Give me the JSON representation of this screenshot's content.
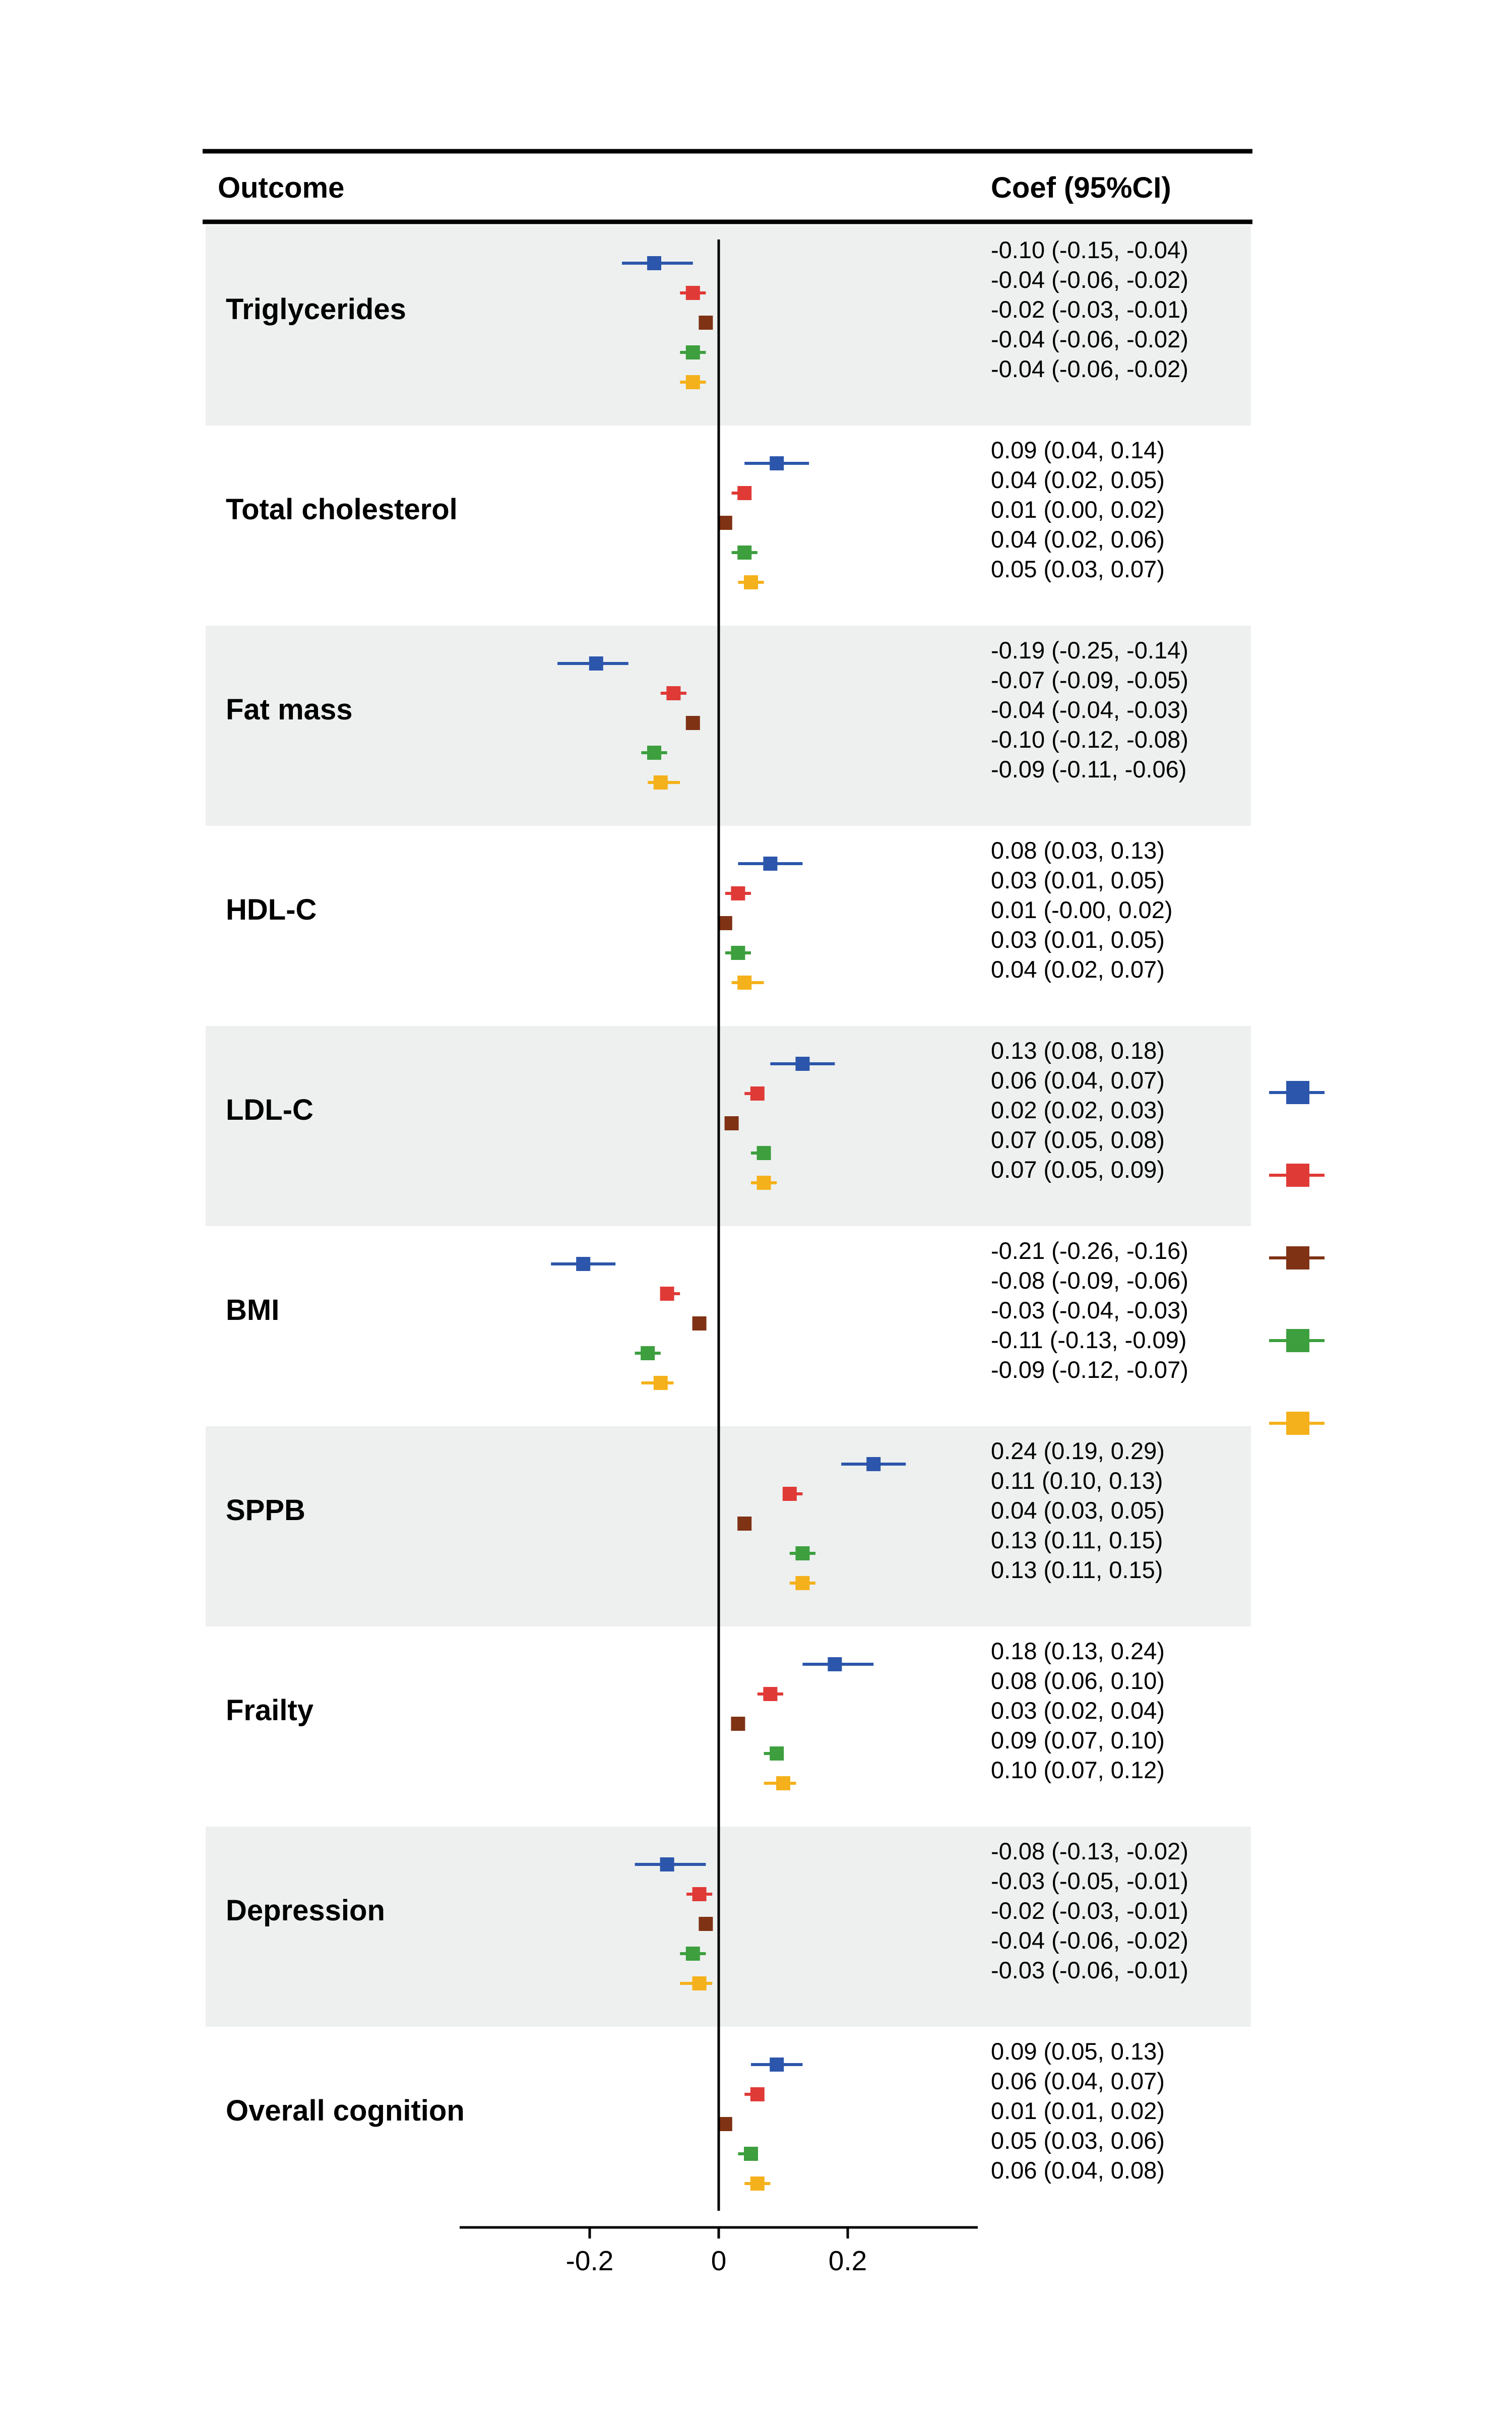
{
  "header": {
    "outcome": "Outcome",
    "coef": "Coef (95%CI)"
  },
  "colors": {
    "band": "#edf0ef",
    "series": [
      "#2c56ab",
      "#e03a37",
      "#7f3214",
      "#3d9f3e",
      "#f5b11b"
    ]
  },
  "chart_data": {
    "type": "forest",
    "x_ticks": [
      -0.2,
      0,
      0.2
    ],
    "x_tick_labels": [
      "-0.2",
      "0",
      "0.2"
    ],
    "xlim": [
      -0.4,
      0.4
    ],
    "reference_line": 0,
    "legend_placement": "right",
    "series_count": 5,
    "groups": [
      {
        "outcome": "Triglycerides",
        "shaded": true,
        "estimates": [
          {
            "est": -0.1,
            "lo": -0.15,
            "hi": -0.04,
            "label": "-0.10 (-0.15, -0.04)"
          },
          {
            "est": -0.04,
            "lo": -0.06,
            "hi": -0.02,
            "label": "-0.04 (-0.06, -0.02)"
          },
          {
            "est": -0.02,
            "lo": -0.03,
            "hi": -0.01,
            "label": "-0.02 (-0.03, -0.01)"
          },
          {
            "est": -0.04,
            "lo": -0.06,
            "hi": -0.02,
            "label": "-0.04 (-0.06, -0.02)"
          },
          {
            "est": -0.04,
            "lo": -0.06,
            "hi": -0.02,
            "label": "-0.04 (-0.06, -0.02)"
          }
        ]
      },
      {
        "outcome": "Total cholesterol",
        "shaded": false,
        "estimates": [
          {
            "est": 0.09,
            "lo": 0.04,
            "hi": 0.14,
            "label": "0.09 (0.04, 0.14)"
          },
          {
            "est": 0.04,
            "lo": 0.02,
            "hi": 0.05,
            "label": "0.04 (0.02, 0.05)"
          },
          {
            "est": 0.01,
            "lo": 0.0,
            "hi": 0.02,
            "label": "0.01 (0.00, 0.02)"
          },
          {
            "est": 0.04,
            "lo": 0.02,
            "hi": 0.06,
            "label": "0.04 (0.02, 0.06)"
          },
          {
            "est": 0.05,
            "lo": 0.03,
            "hi": 0.07,
            "label": "0.05 (0.03, 0.07)"
          }
        ]
      },
      {
        "outcome": "Fat mass",
        "shaded": true,
        "estimates": [
          {
            "est": -0.19,
            "lo": -0.25,
            "hi": -0.14,
            "label": "-0.19 (-0.25, -0.14)"
          },
          {
            "est": -0.07,
            "lo": -0.09,
            "hi": -0.05,
            "label": "-0.07 (-0.09, -0.05)"
          },
          {
            "est": -0.04,
            "lo": -0.04,
            "hi": -0.03,
            "label": "-0.04 (-0.04, -0.03)"
          },
          {
            "est": -0.1,
            "lo": -0.12,
            "hi": -0.08,
            "label": "-0.10 (-0.12, -0.08)"
          },
          {
            "est": -0.09,
            "lo": -0.11,
            "hi": -0.06,
            "label": "-0.09 (-0.11, -0.06)"
          }
        ]
      },
      {
        "outcome": "HDL-C",
        "shaded": false,
        "estimates": [
          {
            "est": 0.08,
            "lo": 0.03,
            "hi": 0.13,
            "label": "0.08 (0.03, 0.13)"
          },
          {
            "est": 0.03,
            "lo": 0.01,
            "hi": 0.05,
            "label": "0.03 (0.01, 0.05)"
          },
          {
            "est": 0.01,
            "lo": -0.0,
            "hi": 0.02,
            "label": "0.01 (-0.00, 0.02)"
          },
          {
            "est": 0.03,
            "lo": 0.01,
            "hi": 0.05,
            "label": "0.03 (0.01, 0.05)"
          },
          {
            "est": 0.04,
            "lo": 0.02,
            "hi": 0.07,
            "label": "0.04 (0.02, 0.07)"
          }
        ]
      },
      {
        "outcome": "LDL-C",
        "shaded": true,
        "estimates": [
          {
            "est": 0.13,
            "lo": 0.08,
            "hi": 0.18,
            "label": "0.13 (0.08, 0.18)"
          },
          {
            "est": 0.06,
            "lo": 0.04,
            "hi": 0.07,
            "label": "0.06 (0.04, 0.07)"
          },
          {
            "est": 0.02,
            "lo": 0.02,
            "hi": 0.03,
            "label": "0.02 (0.02, 0.03)"
          },
          {
            "est": 0.07,
            "lo": 0.05,
            "hi": 0.08,
            "label": "0.07 (0.05, 0.08)"
          },
          {
            "est": 0.07,
            "lo": 0.05,
            "hi": 0.09,
            "label": "0.07 (0.05, 0.09)"
          }
        ]
      },
      {
        "outcome": "BMI",
        "shaded": false,
        "estimates": [
          {
            "est": -0.21,
            "lo": -0.26,
            "hi": -0.16,
            "label": "-0.21 (-0.26, -0.16)"
          },
          {
            "est": -0.08,
            "lo": -0.09,
            "hi": -0.06,
            "label": "-0.08 (-0.09, -0.06)"
          },
          {
            "est": -0.03,
            "lo": -0.04,
            "hi": -0.03,
            "label": "-0.03 (-0.04, -0.03)"
          },
          {
            "est": -0.11,
            "lo": -0.13,
            "hi": -0.09,
            "label": "-0.11 (-0.13, -0.09)"
          },
          {
            "est": -0.09,
            "lo": -0.12,
            "hi": -0.07,
            "label": "-0.09 (-0.12, -0.07)"
          }
        ]
      },
      {
        "outcome": "SPPB",
        "shaded": true,
        "estimates": [
          {
            "est": 0.24,
            "lo": 0.19,
            "hi": 0.29,
            "label": "0.24 (0.19, 0.29)"
          },
          {
            "est": 0.11,
            "lo": 0.1,
            "hi": 0.13,
            "label": "0.11 (0.10, 0.13)"
          },
          {
            "est": 0.04,
            "lo": 0.03,
            "hi": 0.05,
            "label": "0.04 (0.03, 0.05)"
          },
          {
            "est": 0.13,
            "lo": 0.11,
            "hi": 0.15,
            "label": "0.13 (0.11, 0.15)"
          },
          {
            "est": 0.13,
            "lo": 0.11,
            "hi": 0.15,
            "label": "0.13 (0.11, 0.15)"
          }
        ]
      },
      {
        "outcome": "Frailty",
        "shaded": false,
        "estimates": [
          {
            "est": 0.18,
            "lo": 0.13,
            "hi": 0.24,
            "label": "0.18 (0.13, 0.24)"
          },
          {
            "est": 0.08,
            "lo": 0.06,
            "hi": 0.1,
            "label": "0.08 (0.06, 0.10)"
          },
          {
            "est": 0.03,
            "lo": 0.02,
            "hi": 0.04,
            "label": "0.03 (0.02, 0.04)"
          },
          {
            "est": 0.09,
            "lo": 0.07,
            "hi": 0.1,
            "label": "0.09 (0.07, 0.10)"
          },
          {
            "est": 0.1,
            "lo": 0.07,
            "hi": 0.12,
            "label": "0.10 (0.07, 0.12)"
          }
        ]
      },
      {
        "outcome": "Depression",
        "shaded": true,
        "estimates": [
          {
            "est": -0.08,
            "lo": -0.13,
            "hi": -0.02,
            "label": "-0.08 (-0.13, -0.02)"
          },
          {
            "est": -0.03,
            "lo": -0.05,
            "hi": -0.01,
            "label": "-0.03 (-0.05, -0.01)"
          },
          {
            "est": -0.02,
            "lo": -0.03,
            "hi": -0.01,
            "label": "-0.02 (-0.03, -0.01)"
          },
          {
            "est": -0.04,
            "lo": -0.06,
            "hi": -0.02,
            "label": "-0.04 (-0.06, -0.02)"
          },
          {
            "est": -0.03,
            "lo": -0.06,
            "hi": -0.01,
            "label": "-0.03 (-0.06, -0.01)"
          }
        ]
      },
      {
        "outcome": "Overall cognition",
        "shaded": false,
        "estimates": [
          {
            "est": 0.09,
            "lo": 0.05,
            "hi": 0.13,
            "label": "0.09 (0.05, 0.13)"
          },
          {
            "est": 0.06,
            "lo": 0.04,
            "hi": 0.07,
            "label": "0.06 (0.04, 0.07)"
          },
          {
            "est": 0.01,
            "lo": 0.01,
            "hi": 0.02,
            "label": "0.01 (0.01, 0.02)"
          },
          {
            "est": 0.05,
            "lo": 0.03,
            "hi": 0.06,
            "label": "0.05 (0.03, 0.06)"
          },
          {
            "est": 0.06,
            "lo": 0.04,
            "hi": 0.08,
            "label": "0.06 (0.04, 0.08)"
          }
        ]
      }
    ]
  }
}
